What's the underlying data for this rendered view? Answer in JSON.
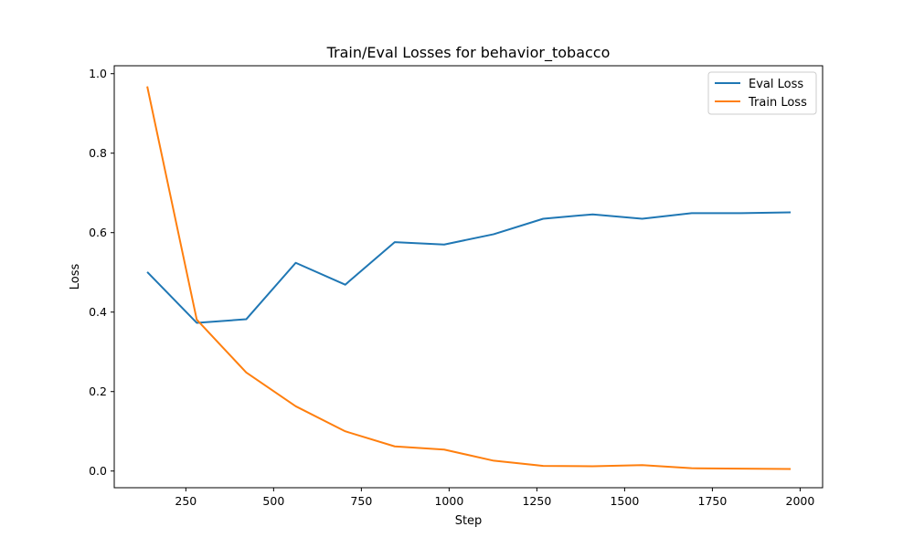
{
  "chart_data": {
    "type": "line",
    "title": "Train/Eval Losses for behavior_tobacco",
    "xlabel": "Step",
    "ylabel": "Loss",
    "xlim": [
      46,
      2064
    ],
    "ylim": [
      -0.042,
      1.02
    ],
    "xticks": [
      250,
      500,
      750,
      1000,
      1250,
      1500,
      1750,
      2000
    ],
    "yticks": [
      0.0,
      0.2,
      0.4,
      0.6,
      0.8,
      1.0
    ],
    "xtick_labels": [
      "250",
      "500",
      "750",
      "1000",
      "1250",
      "1500",
      "1750",
      "2000"
    ],
    "ytick_labels": [
      "0.0",
      "0.2",
      "0.4",
      "0.6",
      "0.8",
      "1.0"
    ],
    "grid": false,
    "legend_position": "top-right",
    "x": [
      140,
      281,
      422,
      563,
      704,
      845,
      986,
      1127,
      1268,
      1409,
      1550,
      1691,
      1832,
      1973
    ],
    "series": [
      {
        "name": "Eval Loss",
        "color": "#1f77b4",
        "values": [
          0.501,
          0.373,
          0.382,
          0.524,
          0.469,
          0.576,
          0.57,
          0.596,
          0.635,
          0.646,
          0.635,
          0.649,
          0.649,
          0.651
        ]
      },
      {
        "name": "Train Loss",
        "color": "#ff7f0e",
        "values": [
          0.968,
          0.381,
          0.248,
          0.163,
          0.1,
          0.062,
          0.054,
          0.026,
          0.013,
          0.012,
          0.015,
          0.007,
          0.006,
          0.005
        ]
      }
    ]
  }
}
